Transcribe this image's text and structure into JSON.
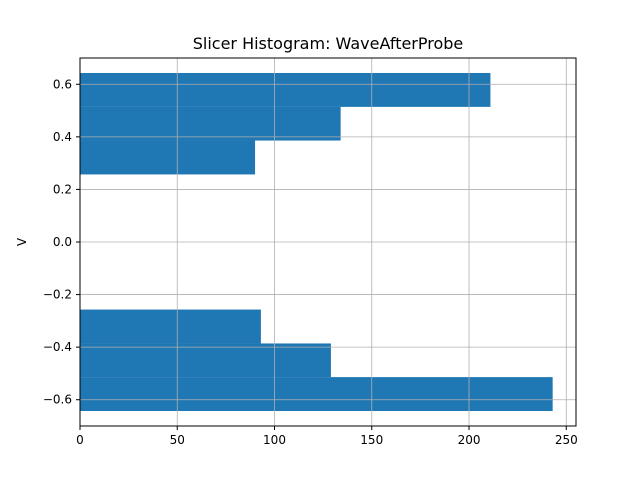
{
  "chart_data": {
    "type": "bar",
    "orientation": "horizontal",
    "title": "Slicer Histogram: WaveAfterProbe",
    "xlabel": "",
    "ylabel": "V",
    "xlim": [
      0,
      255
    ],
    "ylim": [
      -0.7,
      0.7
    ],
    "xticks": [
      0,
      50,
      100,
      150,
      200,
      250
    ],
    "yticks": [
      -0.6,
      -0.4,
      -0.2,
      0.0,
      0.2,
      0.4,
      0.6
    ],
    "xtick_labels": [
      "0",
      "50",
      "100",
      "150",
      "200",
      "250"
    ],
    "ytick_labels": [
      "−0.6",
      "−0.4",
      "−0.2",
      "0.0",
      "0.2",
      "0.4",
      "0.6"
    ],
    "grid": true,
    "color": "#1f77b4",
    "bins": [
      {
        "y0": -0.643,
        "y1": -0.514,
        "value": 243
      },
      {
        "y0": -0.514,
        "y1": -0.386,
        "value": 129
      },
      {
        "y0": -0.386,
        "y1": -0.257,
        "value": 93
      },
      {
        "y0": -0.257,
        "y1": -0.129,
        "value": 0
      },
      {
        "y0": -0.129,
        "y1": 0.0,
        "value": 0
      },
      {
        "y0": 0.0,
        "y1": 0.129,
        "value": 0
      },
      {
        "y0": 0.129,
        "y1": 0.257,
        "value": 0
      },
      {
        "y0": 0.257,
        "y1": 0.386,
        "value": 90
      },
      {
        "y0": 0.386,
        "y1": 0.514,
        "value": 134
      },
      {
        "y0": 0.514,
        "y1": 0.643,
        "value": 211
      }
    ]
  }
}
